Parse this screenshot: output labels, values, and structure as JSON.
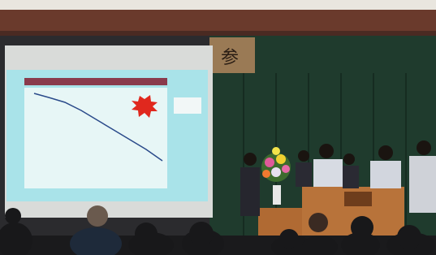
{
  "scene": {
    "wall_sign": "参"
  }
}
